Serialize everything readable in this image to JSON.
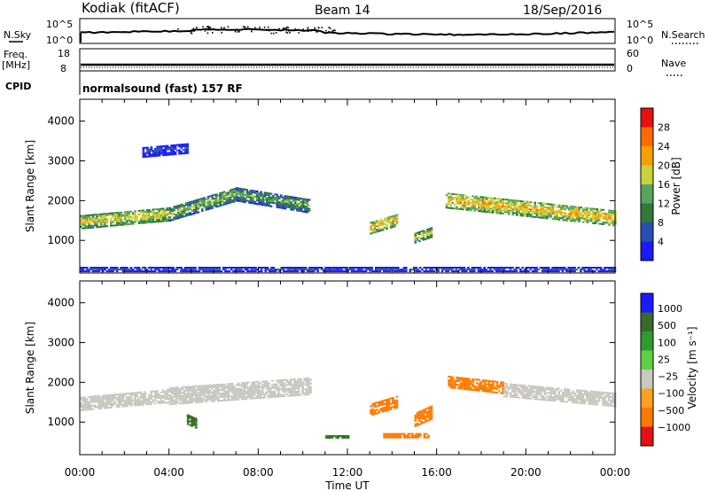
{
  "header": {
    "station": "Kodiak (fitACF)",
    "beam": "Beam 14",
    "date": "18/Sep/2016"
  },
  "top_panels": {
    "nsky_label": "N.Sky",
    "nsky_tick_top": "10^5",
    "nsky_tick_bottom": "10^0",
    "nsearch_label": "N.Search",
    "nsearch_tick_top": "10^5",
    "nsearch_tick_bottom": "10^0",
    "freq_label": "Freq.",
    "freq_unit": "[MHz]",
    "freq_tick_top": "18",
    "freq_tick_bottom": "8",
    "nave_label": "Nave",
    "nave_tick_top": "60",
    "nave_tick_bottom": "0",
    "cpid_label": "CPID",
    "cpid_text": "normalsound (fast) 157 RF"
  },
  "colors": {
    "power_scale": [
      "#1a1aff",
      "#2a4fb0",
      "#2e7a3a",
      "#5aa35a",
      "#c8d23c",
      "#f5a000",
      "#ff6a00",
      "#e51010"
    ],
    "velocity_scale": [
      "#1a1aff",
      "#3a6a2a",
      "#2f9a2f",
      "#5fd040",
      "#c8c8c0",
      "#ffa020",
      "#ff7a00",
      "#e51010"
    ],
    "ground_scatter": "#c8c8c0"
  },
  "chart_data": [
    {
      "type": "heatmap",
      "title": "Power",
      "xlabel": "",
      "ylabel": "Slant Range [km]",
      "xlim": [
        "00:00",
        "24:00"
      ],
      "ylim": [
        180,
        4550
      ],
      "y_ticks": [
        "1000",
        "2000",
        "3000",
        "4000"
      ],
      "colorbar": {
        "label": "Power [dB]",
        "ticks": [
          "4",
          "8",
          "12",
          "16",
          "20",
          "24",
          "28"
        ],
        "range": [
          0,
          32
        ]
      },
      "regions": [
        {
          "t_start": 0.0,
          "t_end": 4.0,
          "range_center_start": 1450,
          "range_center_end": 1650,
          "width_km": 350,
          "power_db": 20
        },
        {
          "t_start": 4.0,
          "t_end": 7.0,
          "range_center_start": 1650,
          "range_center_end": 2150,
          "width_km": 350,
          "power_db": 16
        },
        {
          "t_start": 7.0,
          "t_end": 10.3,
          "range_center_start": 2150,
          "range_center_end": 1850,
          "width_km": 350,
          "power_db": 14
        },
        {
          "t_start": 13.0,
          "t_end": 14.2,
          "range_center_start": 1300,
          "range_center_end": 1500,
          "width_km": 300,
          "power_db": 22
        },
        {
          "t_start": 15.0,
          "t_end": 15.8,
          "range_center_start": 1050,
          "range_center_end": 1200,
          "width_km": 250,
          "power_db": 18
        },
        {
          "t_start": 16.4,
          "t_end": 24.0,
          "range_center_start": 2000,
          "range_center_end": 1550,
          "width_km": 400,
          "power_db": 22
        },
        {
          "t_start": 2.8,
          "t_end": 4.8,
          "range_center_start": 3200,
          "range_center_end": 3300,
          "width_km": 250,
          "power_db": 6
        },
        {
          "t_start": 0.0,
          "t_end": 24.0,
          "range_center_start": 250,
          "range_center_end": 250,
          "width_km": 100,
          "power_db": 8
        }
      ]
    },
    {
      "type": "heatmap",
      "title": "Velocity",
      "xlabel": "Time UT",
      "ylabel": "Slant Range [km]",
      "xlim": [
        "00:00",
        "24:00"
      ],
      "x_ticks": [
        "00:00",
        "04:00",
        "08:00",
        "12:00",
        "16:00",
        "20:00",
        "00:00"
      ],
      "ylim": [
        180,
        4550
      ],
      "y_ticks": [
        "1000",
        "2000",
        "3000",
        "4000"
      ],
      "colorbar": {
        "label": "Velocity [m s⁻¹]",
        "ticks": [
          "1000",
          "500",
          "100",
          "25",
          "−25",
          "−100",
          "−500",
          "−1000"
        ]
      },
      "regions": [
        {
          "t_start": 0.0,
          "t_end": 4.0,
          "range_center_start": 1450,
          "range_center_end": 1650,
          "width_km": 350,
          "velocity": 0,
          "kind": "ground_scatter"
        },
        {
          "t_start": 4.0,
          "t_end": 10.3,
          "range_center_start": 1650,
          "range_center_end": 1900,
          "width_km": 450,
          "velocity": 0,
          "kind": "ground_scatter"
        },
        {
          "t_start": 4.8,
          "t_end": 5.2,
          "range_center_start": 1050,
          "range_center_end": 950,
          "width_km": 250,
          "velocity": 150
        },
        {
          "t_start": 13.0,
          "t_end": 14.2,
          "range_center_start": 1300,
          "range_center_end": 1500,
          "width_km": 300,
          "velocity": -300
        },
        {
          "t_start": 13.6,
          "t_end": 15.6,
          "range_center_start": 650,
          "range_center_end": 650,
          "width_km": 120,
          "velocity": -200
        },
        {
          "t_start": 15.0,
          "t_end": 15.8,
          "range_center_start": 1050,
          "range_center_end": 1250,
          "width_km": 350,
          "velocity": -400
        },
        {
          "t_start": 16.5,
          "t_end": 19.0,
          "range_center_start": 2000,
          "range_center_end": 1850,
          "width_km": 300,
          "velocity": -150
        },
        {
          "t_start": 19.0,
          "t_end": 24.0,
          "range_center_start": 1800,
          "range_center_end": 1550,
          "width_km": 350,
          "velocity": 0,
          "kind": "ground_scatter"
        },
        {
          "t_start": 11.0,
          "t_end": 12.0,
          "range_center_start": 620,
          "range_center_end": 620,
          "width_km": 80,
          "velocity": 120
        }
      ]
    }
  ]
}
